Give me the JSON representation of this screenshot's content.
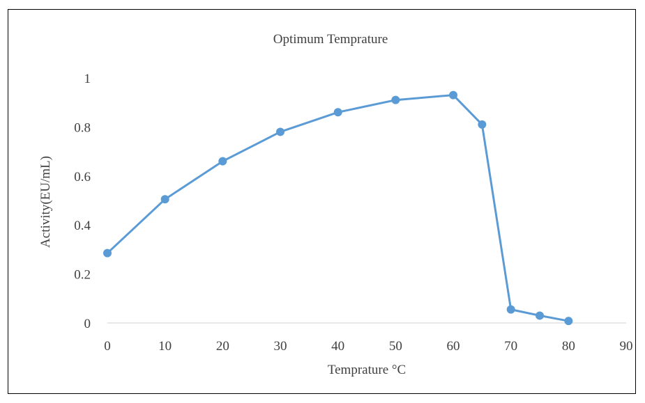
{
  "chart_data": {
    "type": "line",
    "title": "Optimum Temprature",
    "xlabel": "Temprature °C",
    "ylabel": "Activity(EU/mL)",
    "xlim": [
      0,
      90
    ],
    "ylim": [
      0,
      1
    ],
    "x_ticks": [
      "0",
      "10",
      "20",
      "30",
      "40",
      "50",
      "60",
      "70",
      "80",
      "90"
    ],
    "y_ticks": [
      "0",
      "0.2",
      "0.4",
      "0.6",
      "0.8",
      "1"
    ],
    "grid": false,
    "legend": "none",
    "series": [
      {
        "color": "#5b9bd5",
        "x": [
          0,
          10,
          20,
          30,
          40,
          50,
          60,
          65,
          70,
          75,
          80
        ],
        "y": [
          0.285,
          0.505,
          0.66,
          0.78,
          0.86,
          0.91,
          0.93,
          0.81,
          0.055,
          0.03,
          0.008
        ]
      }
    ]
  }
}
